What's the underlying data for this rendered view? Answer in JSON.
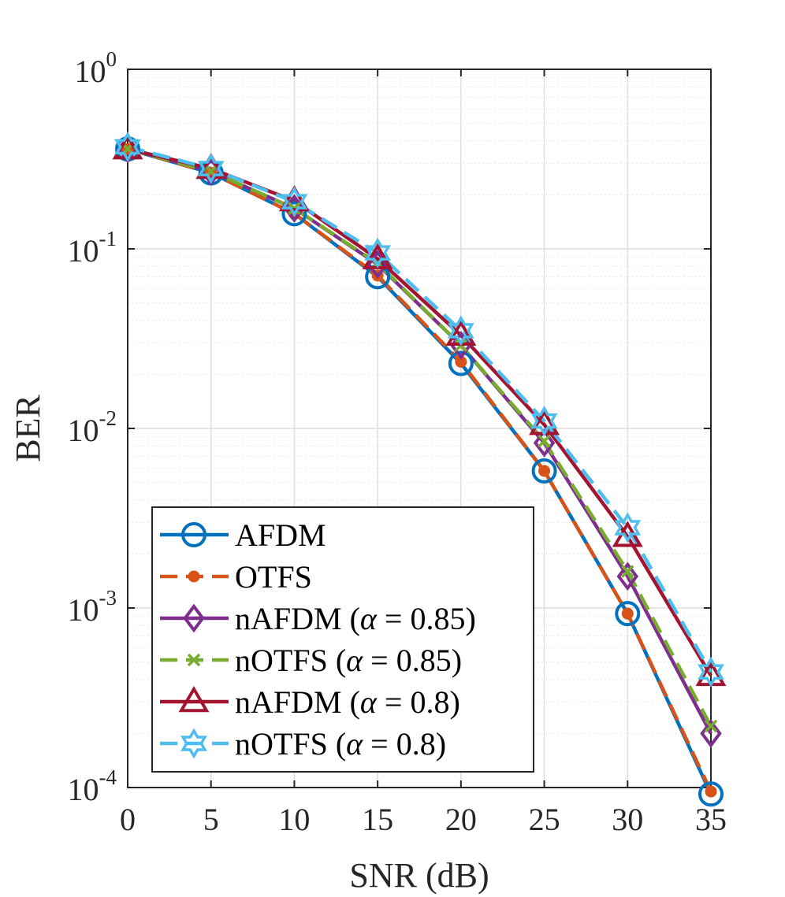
{
  "chart_data": {
    "type": "line",
    "title": "",
    "xlabel": "SNR (dB)",
    "ylabel": "BER",
    "yscale": "log",
    "xlim": [
      0,
      35
    ],
    "ylim": [
      0.0001,
      1
    ],
    "grid": true,
    "x": [
      0,
      5,
      10,
      15,
      20,
      25,
      30,
      35
    ],
    "xticks": [
      "0",
      "5",
      "10",
      "15",
      "20",
      "25",
      "30",
      "35"
    ],
    "yticks": [
      {
        "base": "10",
        "exp": "0",
        "value": 1
      },
      {
        "base": "10",
        "exp": "-1",
        "value": 0.1
      },
      {
        "base": "10",
        "exp": "-2",
        "value": 0.01
      },
      {
        "base": "10",
        "exp": "-3",
        "value": 0.001
      },
      {
        "base": "10",
        "exp": "-4",
        "value": 0.0001
      }
    ],
    "legend_position": "bottom-left",
    "series": [
      {
        "name": "AFDM",
        "prefix": "AFDM",
        "alpha": "",
        "color": "#0072BD",
        "dash": "solid",
        "marker": "circle",
        "values": [
          0.36,
          0.265,
          0.157,
          0.07,
          0.023,
          0.0058,
          0.00093,
          9.2e-05
        ]
      },
      {
        "name": "OTFS",
        "prefix": "OTFS",
        "alpha": "",
        "color": "#D95319",
        "dash": "dashed",
        "marker": "dot",
        "values": [
          0.36,
          0.265,
          0.157,
          0.071,
          0.0235,
          0.0058,
          0.00093,
          9.5e-05
        ]
      },
      {
        "name": "nAFDM (α = 0.85)",
        "prefix": "nAFDM (",
        "alpha": " = 0.85)",
        "color": "#7E2F8E",
        "dash": "solid",
        "marker": "diamond",
        "values": [
          0.36,
          0.27,
          0.168,
          0.082,
          0.029,
          0.0083,
          0.0015,
          0.0002
        ]
      },
      {
        "name": "nOTFS (α = 0.85)",
        "prefix": "nOTFS (",
        "alpha": " = 0.85)",
        "color": "#77AC30",
        "dash": "dashed",
        "marker": "x",
        "values": [
          0.36,
          0.27,
          0.168,
          0.083,
          0.029,
          0.0085,
          0.0016,
          0.00022
        ]
      },
      {
        "name": "nAFDM (α = 0.8)",
        "prefix": "nAFDM (",
        "alpha": " = 0.8)",
        "color": "#A2142F",
        "dash": "solid",
        "marker": "triangle",
        "values": [
          0.36,
          0.28,
          0.185,
          0.088,
          0.033,
          0.0105,
          0.0025,
          0.00042
        ]
      },
      {
        "name": "nOTFS (α = 0.8)",
        "prefix": "nOTFS (",
        "alpha": " = 0.8)",
        "color": "#4DBEEE",
        "dash": "dashed",
        "marker": "hexagram",
        "values": [
          0.37,
          0.28,
          0.183,
          0.095,
          0.035,
          0.011,
          0.0028,
          0.00044
        ]
      }
    ]
  }
}
